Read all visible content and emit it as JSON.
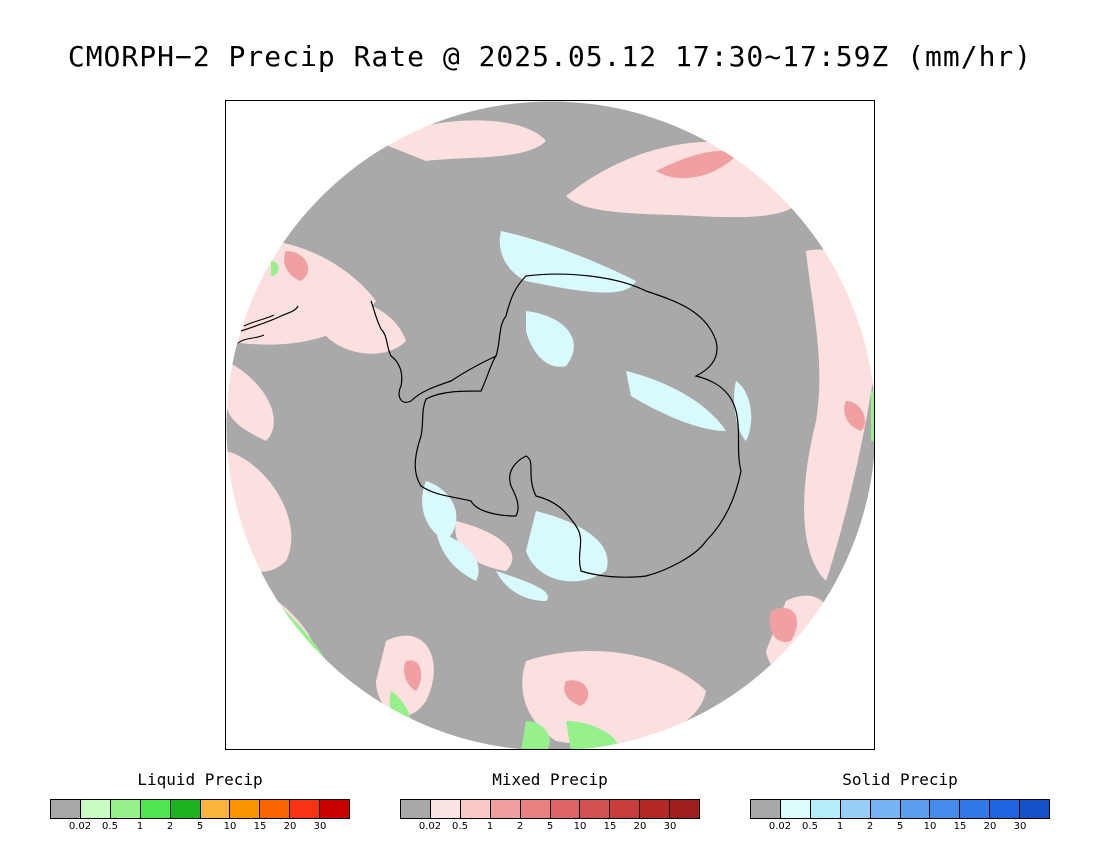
{
  "title": "CMORPH−2 Precip Rate @ 2025.05.12 17:30~17:59Z (mm/hr)",
  "map": {
    "projection": "south-polar-stereographic",
    "background_color": "#a9a9a9",
    "coastline_color": "#000000"
  },
  "legends": [
    {
      "title": "Liquid Precip",
      "colors": [
        "#a8a8a8",
        "#c8fcc0",
        "#96f08c",
        "#50e650",
        "#1eb41e",
        "#fcb43c",
        "#fc9600",
        "#fc6400",
        "#fa3214",
        "#c80000"
      ],
      "ticks": [
        "0.02",
        "0.5",
        "1",
        "2",
        "5",
        "10",
        "15",
        "20",
        "30"
      ]
    },
    {
      "title": "Mixed Precip",
      "colors": [
        "#a8a8a8",
        "#fce4e4",
        "#fac8c8",
        "#f0a0a0",
        "#e88282",
        "#dc6464",
        "#d25050",
        "#c83c3c",
        "#b42828",
        "#a01e1e"
      ],
      "ticks": [
        "0.02",
        "0.5",
        "1",
        "2",
        "5",
        "10",
        "15",
        "20",
        "30"
      ]
    },
    {
      "title": "Solid Precip",
      "colors": [
        "#a8a8a8",
        "#dcfcfc",
        "#b4ecf8",
        "#96cef8",
        "#78b4f4",
        "#5aa0ee",
        "#468cec",
        "#3278e8",
        "#1e64e0",
        "#1450c8"
      ],
      "ticks": [
        "0.02",
        "0.5",
        "1",
        "2",
        "5",
        "10",
        "15",
        "20",
        "30"
      ]
    }
  ]
}
